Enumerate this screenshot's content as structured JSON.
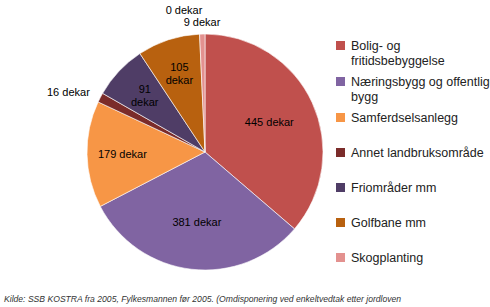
{
  "chart_data": {
    "type": "pie",
    "categories": [
      "Bolig- og fritidsbebyggelse",
      "Næringsbygg og offentlige bygg",
      "Samferdselsanlegg",
      "Annet landbruksområde",
      "Friområder mm",
      "Golfbane mm",
      "Skogplanting",
      null
    ],
    "values": [
      445,
      381,
      179,
      16,
      91,
      105,
      9,
      0
    ],
    "value_labels": [
      "445 dekar",
      "381 dekar",
      "179 dekar",
      "16 dekar",
      "91 dekar",
      "105 dekar",
      "9 dekar",
      "0 dekar"
    ],
    "colors": [
      "#c0504d",
      "#8064a2",
      "#f79646",
      "#7b2c2a",
      "#4f3d66",
      "#b8610f",
      "#e3918f",
      "#4bacc6"
    ],
    "data_labels": true,
    "legend": "right",
    "source": "Kilde: SSB KOSTRA fra 2005, Fylkesmannen før 2005. (Omdisponering ved enkeltvedtak etter jordloven"
  }
}
